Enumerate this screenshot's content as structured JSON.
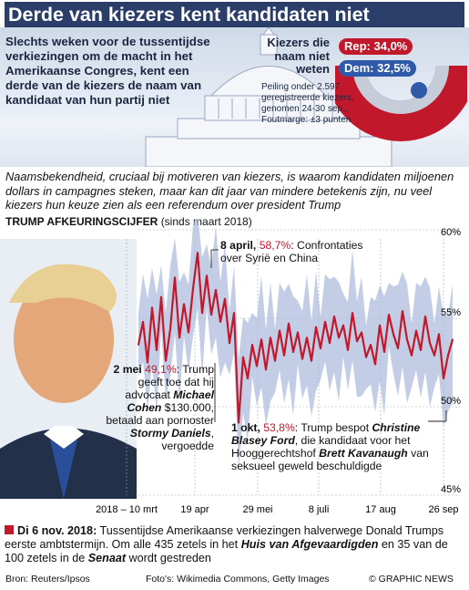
{
  "title": "Derde van kiezers kent kandidaten niet",
  "intro": "Slechts weken voor de tussentijdse verkiezingen om de macht in het Amerikaanse Congres, kent een derde van de kiezers de naam van kandidaat van hun partij niet",
  "voters": {
    "title": "Kiezers die naam niet weten",
    "rep_label": "Rep: 34,0%",
    "dem_label": "Dem: 32,5%",
    "rep_value": 34.0,
    "dem_value": 32.5,
    "rep_color": "#c2182b",
    "dem_color": "#2f5aa8",
    "note": "Peiling onder 2.597 geregistreerde kiezers, genomen 24-30 sep., Foutmarge: ±3 punten"
  },
  "subtext": "Naamsbekendheid, cruciaal bij motiveren van kiezers, is waarom kandidaten miljoenen dollars in campagnes steken, maar kan dit jaar van mindere betekenis zijn, nu veel kiezers hun keuze zien als een referendum over president Trump",
  "chart_label_bold": "TRUMP AFKEURINGSCIJFER",
  "chart_label_rest": "(sinds maart 2018)",
  "annotations": {
    "apr8_date": "8 april,",
    "apr8_value": "58,7%",
    "apr8_text": ": Confrontaties over Syrië en China",
    "may2_date": "2 mei",
    "may2_value": "49,1%",
    "may2_text1": "Trump geeft toe dat hij advocaat",
    "may2_name1": "Michael Cohen",
    "may2_text2": "$130.000, betaald aan pornoster",
    "may2_name2": "Stormy Daniels",
    "may2_text3": ", vergoedde",
    "oct1_date": "1 okt,",
    "oct1_value": "53,8%",
    "oct1_text1": ": Trump bespot",
    "oct1_name1": "Christine Blasey Ford",
    "oct1_text2": ", die kandidaat voor het Hooggerechtshof",
    "oct1_name2": "Brett Kavanaugh",
    "oct1_text3": "van seksueel geweld beschuldigde"
  },
  "chart_data": {
    "type": "line",
    "title": "TRUMP AFKEURINGSCIJFER (sinds maart 2018)",
    "x_ticks": [
      "2018 – 10 mrt",
      "19 apr",
      "29 mei",
      "8 juli",
      "17 aug",
      "26 sep"
    ],
    "y_ticks": [
      "60%",
      "55%",
      "50%",
      "45%"
    ],
    "ylim": [
      45,
      60
    ],
    "line_color": "#c2182b",
    "band_color": "#a9b9dc",
    "series": [
      {
        "values": [
          53.5,
          54.8,
          52.5,
          55.6,
          53.2,
          56.2,
          52.6,
          54.4,
          57.3,
          53.9,
          55.8,
          54.2,
          56.7,
          58.7,
          55.3,
          57.4,
          55.2,
          56.6,
          54.8,
          56.1,
          53.6,
          55.3,
          49.1,
          52.8,
          51.6,
          53.5,
          52.3,
          53.8,
          52.1,
          53.9,
          52.6,
          54.3,
          52.9,
          54.7,
          53.1,
          54.2,
          52.7,
          53.9,
          52.6,
          54.5,
          53.3,
          54.8,
          53.6,
          55.1,
          53.9,
          54.6,
          53.2,
          55.3,
          53.7,
          54.2,
          52.8,
          53.5,
          52.4,
          54.6,
          53.1,
          55.2,
          54.1,
          53.3,
          55.4,
          53.8,
          52.9,
          54.3,
          53.2,
          55.1,
          53.6,
          52.9,
          54.1,
          51.6,
          52.9,
          53.8
        ]
      }
    ]
  },
  "footer": {
    "date": "Di 6 nov. 2018:",
    "text1": "Tussentijdse Amerikaanse verkiezingen halverwege Donald Trumps eerste ambtstermijn. Om alle 435 zetels in het",
    "house": "Huis van Afgevaardigden",
    "text2": "en 35 van de 100 zetels in de",
    "senate": "Senaat",
    "text3": "wordt gestreden"
  },
  "credits": {
    "source": "Bron: Reuters/Ipsos",
    "photos": "Foto's: Wikimedia Commons, Getty Images",
    "brand": "© GRAPHIC NEWS"
  }
}
